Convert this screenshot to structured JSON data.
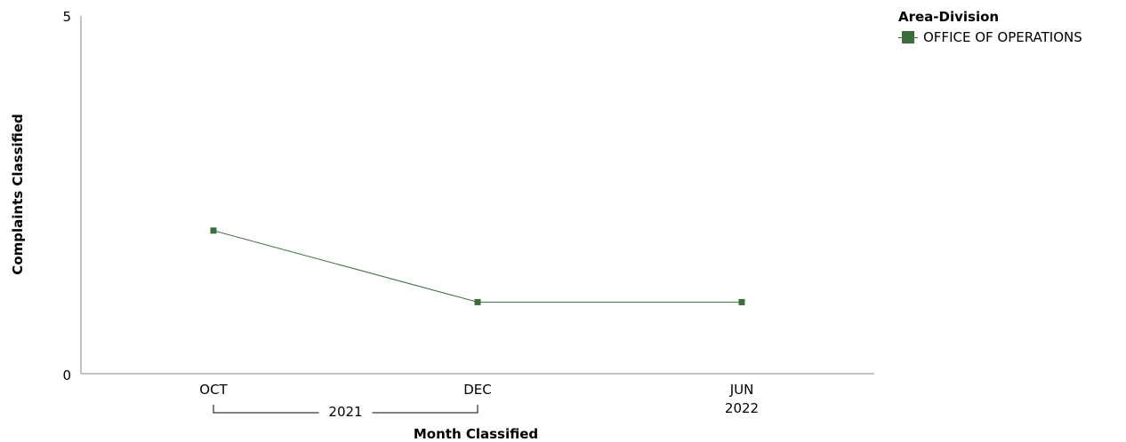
{
  "chart_data": {
    "type": "line",
    "xlabel": "Month Classified",
    "ylabel": "Complaints Classified",
    "ylim": [
      0,
      5
    ],
    "y_ticks": [
      "0",
      "5"
    ],
    "categories": [
      "OCT",
      "DEC",
      "JUN"
    ],
    "year_groups": [
      {
        "label": "2021",
        "months": [
          "OCT",
          "DEC"
        ]
      },
      {
        "label": "2022",
        "months": [
          "JUN"
        ]
      }
    ],
    "series": [
      {
        "name": "OFFICE OF OPERATIONS",
        "color": "#3b6e3b",
        "values": [
          2,
          1,
          1
        ]
      }
    ],
    "legend": {
      "title": "Area-Division",
      "position": "top-right"
    },
    "grid": false
  }
}
